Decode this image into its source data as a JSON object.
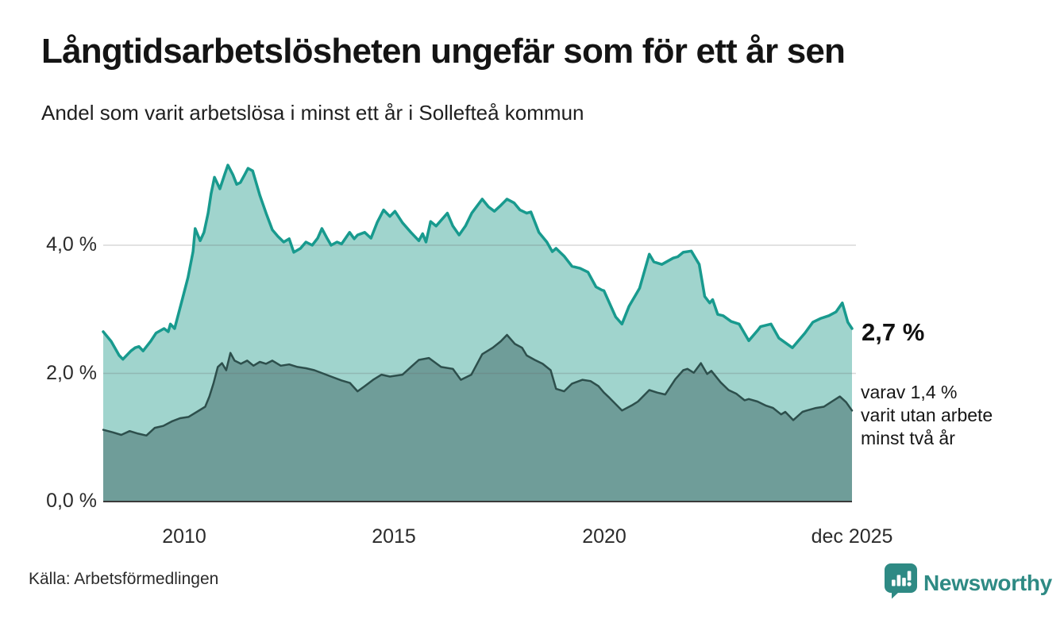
{
  "header": {
    "title": "Långtidsarbetslösheten ungefär som för ett år sen",
    "subtitle": "Andel som varit arbetslösa i minst ett år i Sollefteå kommun"
  },
  "annotations": {
    "latest_value": "2,7 %",
    "secondary_lines": [
      "varav 1,4 %",
      "varit utan arbete",
      "minst två år"
    ]
  },
  "footer": {
    "source": "Källa: Arbetsförmedlingen",
    "brand": "Newsworthy"
  },
  "colors": {
    "upper_line": "#189a8e",
    "upper_fill": "#a0d4cd",
    "lower_line": "#2d4f4c",
    "lower_fill": "#6f9d99",
    "gridline": "rgba(105,105,105,0.26)",
    "baseline": "#3b3b3b",
    "brand_teal": "#2e8a84"
  },
  "chart_data": {
    "type": "area",
    "title": "Långtidsarbetslösheten ungefär som för ett år sen",
    "subtitle": "Andel som varit arbetslösa i minst ett år i Sollefteå kommun",
    "xlabel": "",
    "ylabel": "",
    "xlim": [
      2008.07,
      2025.91
    ],
    "ylim": [
      0,
      5.6
    ],
    "grid": "horizontal",
    "legend_position": "none",
    "x_ticks": [
      {
        "label": "2010",
        "year": 2010
      },
      {
        "label": "2015",
        "year": 2015
      },
      {
        "label": "2020",
        "year": 2020
      },
      {
        "label": "dec 2025",
        "year": 2025.91
      }
    ],
    "y_ticks": [
      {
        "label": "0,0 %",
        "value": 0
      },
      {
        "label": "2,0 %",
        "value": 2
      },
      {
        "label": "4,0 %",
        "value": 4
      }
    ],
    "series": [
      {
        "name": "Arbetslösa minst ett år",
        "end_value": 2.7,
        "end_value_label": "2,7 %",
        "line_color": "#189a8e",
        "fill_color": "#a0d4cd",
        "line_width": 3.5,
        "points": [
          [
            2008.07,
            2.65
          ],
          [
            2008.26,
            2.5
          ],
          [
            2008.45,
            2.28
          ],
          [
            2008.54,
            2.22
          ],
          [
            2008.73,
            2.35
          ],
          [
            2008.83,
            2.4
          ],
          [
            2008.92,
            2.42
          ],
          [
            2009.02,
            2.35
          ],
          [
            2009.2,
            2.5
          ],
          [
            2009.33,
            2.63
          ],
          [
            2009.52,
            2.7
          ],
          [
            2009.62,
            2.65
          ],
          [
            2009.67,
            2.77
          ],
          [
            2009.77,
            2.7
          ],
          [
            2009.96,
            3.17
          ],
          [
            2010.09,
            3.5
          ],
          [
            2010.21,
            3.9
          ],
          [
            2010.26,
            4.26
          ],
          [
            2010.38,
            4.07
          ],
          [
            2010.47,
            4.2
          ],
          [
            2010.57,
            4.5
          ],
          [
            2010.64,
            4.8
          ],
          [
            2010.72,
            5.06
          ],
          [
            2010.85,
            4.88
          ],
          [
            2010.96,
            5.1
          ],
          [
            2011.04,
            5.25
          ],
          [
            2011.16,
            5.1
          ],
          [
            2011.25,
            4.95
          ],
          [
            2011.34,
            4.98
          ],
          [
            2011.44,
            5.1
          ],
          [
            2011.52,
            5.2
          ],
          [
            2011.63,
            5.16
          ],
          [
            2011.8,
            4.78
          ],
          [
            2011.95,
            4.5
          ],
          [
            2012.1,
            4.24
          ],
          [
            2012.23,
            4.14
          ],
          [
            2012.37,
            4.05
          ],
          [
            2012.5,
            4.1
          ],
          [
            2012.61,
            3.89
          ],
          [
            2012.77,
            3.95
          ],
          [
            2012.9,
            4.05
          ],
          [
            2013.05,
            4.0
          ],
          [
            2013.18,
            4.11
          ],
          [
            2013.28,
            4.26
          ],
          [
            2013.41,
            4.1
          ],
          [
            2013.5,
            4.0
          ],
          [
            2013.64,
            4.05
          ],
          [
            2013.75,
            4.02
          ],
          [
            2013.94,
            4.2
          ],
          [
            2014.05,
            4.1
          ],
          [
            2014.13,
            4.16
          ],
          [
            2014.3,
            4.2
          ],
          [
            2014.45,
            4.11
          ],
          [
            2014.6,
            4.36
          ],
          [
            2014.75,
            4.55
          ],
          [
            2014.9,
            4.45
          ],
          [
            2015.02,
            4.53
          ],
          [
            2015.2,
            4.35
          ],
          [
            2015.4,
            4.2
          ],
          [
            2015.59,
            4.07
          ],
          [
            2015.68,
            4.18
          ],
          [
            2015.76,
            4.05
          ],
          [
            2015.87,
            4.37
          ],
          [
            2016.0,
            4.3
          ],
          [
            2016.27,
            4.5
          ],
          [
            2016.4,
            4.3
          ],
          [
            2016.55,
            4.16
          ],
          [
            2016.7,
            4.3
          ],
          [
            2016.85,
            4.5
          ],
          [
            2017.1,
            4.72
          ],
          [
            2017.25,
            4.6
          ],
          [
            2017.39,
            4.53
          ],
          [
            2017.54,
            4.62
          ],
          [
            2017.69,
            4.72
          ],
          [
            2017.86,
            4.66
          ],
          [
            2018.0,
            4.55
          ],
          [
            2018.16,
            4.5
          ],
          [
            2018.26,
            4.52
          ],
          [
            2018.45,
            4.2
          ],
          [
            2018.64,
            4.05
          ],
          [
            2018.77,
            3.9
          ],
          [
            2018.86,
            3.95
          ],
          [
            2019.05,
            3.83
          ],
          [
            2019.24,
            3.67
          ],
          [
            2019.43,
            3.64
          ],
          [
            2019.62,
            3.58
          ],
          [
            2019.81,
            3.35
          ],
          [
            2019.95,
            3.3
          ],
          [
            2020.0,
            3.29
          ],
          [
            2020.28,
            2.88
          ],
          [
            2020.43,
            2.77
          ],
          [
            2020.6,
            3.05
          ],
          [
            2020.76,
            3.23
          ],
          [
            2020.85,
            3.33
          ],
          [
            2021.08,
            3.86
          ],
          [
            2021.19,
            3.74
          ],
          [
            2021.38,
            3.7
          ],
          [
            2021.65,
            3.8
          ],
          [
            2021.76,
            3.82
          ],
          [
            2021.89,
            3.89
          ],
          [
            2022.08,
            3.91
          ],
          [
            2022.27,
            3.7
          ],
          [
            2022.4,
            3.2
          ],
          [
            2022.52,
            3.1
          ],
          [
            2022.59,
            3.15
          ],
          [
            2022.71,
            2.92
          ],
          [
            2022.84,
            2.9
          ],
          [
            2023.03,
            2.81
          ],
          [
            2023.22,
            2.77
          ],
          [
            2023.45,
            2.51
          ],
          [
            2023.66,
            2.67
          ],
          [
            2023.73,
            2.73
          ],
          [
            2023.98,
            2.77
          ],
          [
            2024.17,
            2.55
          ],
          [
            2024.49,
            2.4
          ],
          [
            2024.79,
            2.63
          ],
          [
            2024.98,
            2.8
          ],
          [
            2025.17,
            2.86
          ],
          [
            2025.36,
            2.9
          ],
          [
            2025.53,
            2.96
          ],
          [
            2025.68,
            3.1
          ],
          [
            2025.81,
            2.8
          ],
          [
            2025.91,
            2.7
          ]
        ]
      },
      {
        "name": "Varav utan arbete minst två år",
        "end_value": 1.4,
        "end_value_label": "1,4 %",
        "line_color": "#2d4f4c",
        "fill_color": "#6f9d99",
        "line_width": 2.5,
        "points": [
          [
            2008.07,
            1.12
          ],
          [
            2008.3,
            1.08
          ],
          [
            2008.5,
            1.04
          ],
          [
            2008.7,
            1.1
          ],
          [
            2008.9,
            1.06
          ],
          [
            2009.1,
            1.03
          ],
          [
            2009.3,
            1.15
          ],
          [
            2009.5,
            1.18
          ],
          [
            2009.7,
            1.25
          ],
          [
            2009.9,
            1.3
          ],
          [
            2010.1,
            1.32
          ],
          [
            2010.3,
            1.4
          ],
          [
            2010.5,
            1.48
          ],
          [
            2010.6,
            1.64
          ],
          [
            2010.7,
            1.85
          ],
          [
            2010.8,
            2.1
          ],
          [
            2010.9,
            2.16
          ],
          [
            2011.0,
            2.05
          ],
          [
            2011.1,
            2.32
          ],
          [
            2011.2,
            2.2
          ],
          [
            2011.35,
            2.15
          ],
          [
            2011.5,
            2.2
          ],
          [
            2011.65,
            2.12
          ],
          [
            2011.8,
            2.18
          ],
          [
            2011.95,
            2.15
          ],
          [
            2012.1,
            2.2
          ],
          [
            2012.3,
            2.12
          ],
          [
            2012.5,
            2.14
          ],
          [
            2012.7,
            2.1
          ],
          [
            2012.9,
            2.08
          ],
          [
            2013.1,
            2.05
          ],
          [
            2013.3,
            2.0
          ],
          [
            2013.5,
            1.95
          ],
          [
            2013.75,
            1.89
          ],
          [
            2013.95,
            1.85
          ],
          [
            2014.13,
            1.72
          ],
          [
            2014.3,
            1.8
          ],
          [
            2014.5,
            1.9
          ],
          [
            2014.7,
            1.98
          ],
          [
            2014.9,
            1.95
          ],
          [
            2015.2,
            1.98
          ],
          [
            2015.4,
            2.1
          ],
          [
            2015.59,
            2.21
          ],
          [
            2015.83,
            2.24
          ],
          [
            2016.12,
            2.1
          ],
          [
            2016.4,
            2.07
          ],
          [
            2016.59,
            1.9
          ],
          [
            2016.84,
            1.98
          ],
          [
            2017.1,
            2.3
          ],
          [
            2017.35,
            2.4
          ],
          [
            2017.54,
            2.5
          ],
          [
            2017.69,
            2.6
          ],
          [
            2017.88,
            2.46
          ],
          [
            2018.05,
            2.4
          ],
          [
            2018.16,
            2.28
          ],
          [
            2018.35,
            2.21
          ],
          [
            2018.54,
            2.15
          ],
          [
            2018.73,
            2.05
          ],
          [
            2018.86,
            1.76
          ],
          [
            2019.05,
            1.72
          ],
          [
            2019.24,
            1.84
          ],
          [
            2019.49,
            1.9
          ],
          [
            2019.68,
            1.88
          ],
          [
            2019.87,
            1.8
          ],
          [
            2020.0,
            1.7
          ],
          [
            2020.13,
            1.62
          ],
          [
            2020.43,
            1.42
          ],
          [
            2020.66,
            1.5
          ],
          [
            2020.81,
            1.56
          ],
          [
            2021.08,
            1.74
          ],
          [
            2021.27,
            1.7
          ],
          [
            2021.46,
            1.67
          ],
          [
            2021.7,
            1.91
          ],
          [
            2021.89,
            2.05
          ],
          [
            2021.99,
            2.07
          ],
          [
            2022.14,
            2.01
          ],
          [
            2022.31,
            2.16
          ],
          [
            2022.46,
            1.99
          ],
          [
            2022.56,
            2.04
          ],
          [
            2022.78,
            1.86
          ],
          [
            2022.97,
            1.74
          ],
          [
            2023.16,
            1.68
          ],
          [
            2023.35,
            1.58
          ],
          [
            2023.45,
            1.6
          ],
          [
            2023.66,
            1.56
          ],
          [
            2023.85,
            1.5
          ],
          [
            2024.03,
            1.46
          ],
          [
            2024.22,
            1.36
          ],
          [
            2024.32,
            1.4
          ],
          [
            2024.51,
            1.27
          ],
          [
            2024.73,
            1.4
          ],
          [
            2024.83,
            1.42
          ],
          [
            2025.05,
            1.46
          ],
          [
            2025.24,
            1.48
          ],
          [
            2025.43,
            1.56
          ],
          [
            2025.62,
            1.64
          ],
          [
            2025.77,
            1.55
          ],
          [
            2025.91,
            1.42
          ]
        ]
      }
    ]
  }
}
